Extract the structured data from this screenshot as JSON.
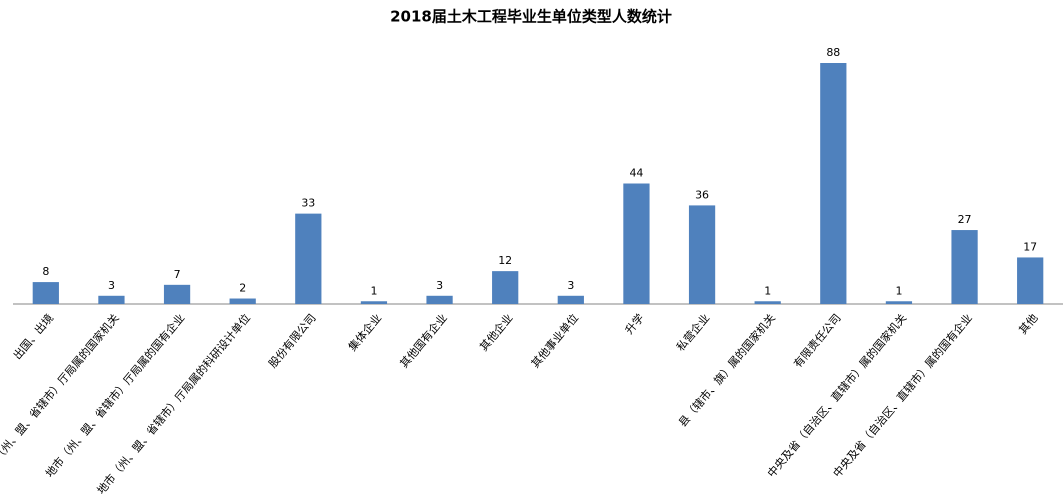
{
  "chart_data": {
    "type": "bar",
    "title": "2018届土木工程毕业生单位类型人数统计",
    "categories": [
      "出国、出境",
      "地市（州、盟、省辖市）厅局属的国家机关",
      "地市（州、盟、省辖市）厅局属的国有企业",
      "地市（州、盟、省辖市）厅局属的科研设计单位",
      "股份有限公司",
      "集体企业",
      "其他国有企业",
      "其他企业",
      "其他事业单位",
      "升学",
      "私营企业",
      "县（辖市、旗）属的国家机关",
      "有限责任公司",
      "中央及省（自治区、直辖市）属的国家机关",
      "中央及省（自治区、直辖市）属的国有企业",
      "其他"
    ],
    "values": [
      8,
      3,
      7,
      2,
      33,
      1,
      3,
      12,
      3,
      44,
      36,
      1,
      88,
      1,
      27,
      17
    ],
    "color": "#4f81bd"
  }
}
